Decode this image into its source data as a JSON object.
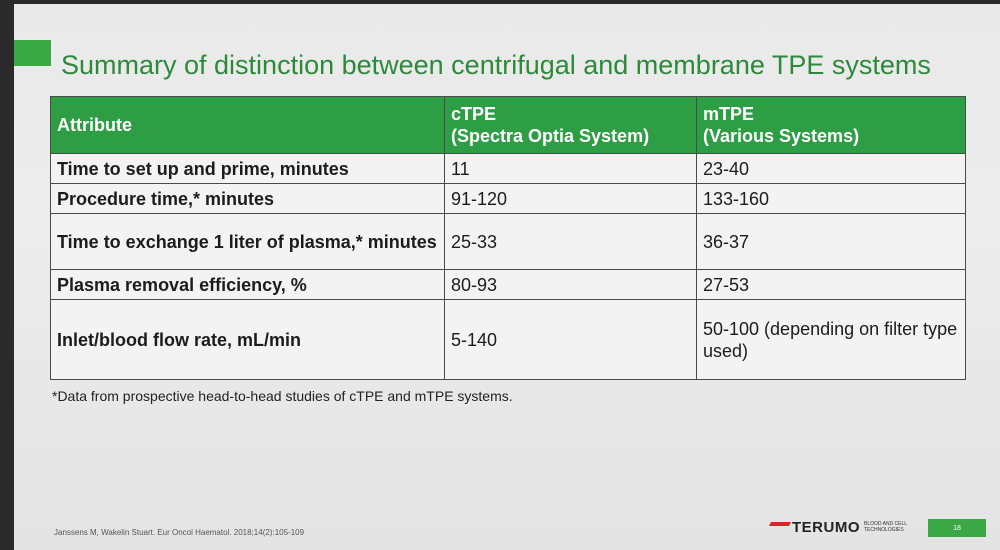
{
  "slide": {
    "title": "Summary of distinction between centrifugal and membrane TPE systems",
    "accent_color": "#3aa845",
    "table": {
      "header_color": "#2e9e45",
      "columns": [
        {
          "line1": "Attribute",
          "line2": ""
        },
        {
          "line1": "cTPE",
          "line2": "(Spectra Optia System)"
        },
        {
          "line1": "mTPE",
          "line2": "(Various Systems)"
        }
      ],
      "rows": [
        {
          "attribute": "Time to set up and prime, minutes",
          "ctpe": "11",
          "mtpe": "23-40"
        },
        {
          "attribute": "Procedure time,* minutes",
          "ctpe": "91-120",
          "mtpe": "133-160"
        },
        {
          "attribute": "Time to exchange 1 liter of plasma,* minutes",
          "ctpe": "25-33",
          "mtpe": "36-37"
        },
        {
          "attribute": "Plasma removal efficiency, %",
          "ctpe": "80-93",
          "mtpe": "27-53"
        },
        {
          "attribute": "Inlet/blood flow rate, mL/min",
          "ctpe": "5-140",
          "mtpe": "50-100 (depending on filter type used)"
        }
      ]
    },
    "footnote": "*Data from prospective head-to-head studies of cTPE and mTPE systems.",
    "citation": "Janssens M, Wakelin Stuart. Eur Oncol Haematol. 2018;14(2):105-109",
    "brand": {
      "name": "TERUMO",
      "tagline": "BLOOD AND CELL TECHNOLOGIES",
      "logo_color": "#d6262c"
    },
    "page_number": "18"
  }
}
